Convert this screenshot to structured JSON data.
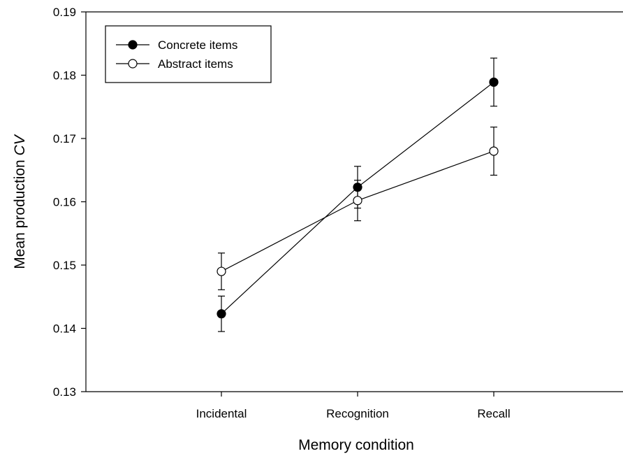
{
  "chart_data": {
    "type": "line",
    "title": "",
    "xlabel": "Memory condition",
    "ylabel_main": "Mean production ",
    "ylabel_italic": "CV",
    "categories": [
      "Incidental",
      "Recognition",
      "Recall"
    ],
    "ylim": [
      0.13,
      0.19
    ],
    "yticks": [
      "0.13",
      "0.14",
      "0.15",
      "0.16",
      "0.17",
      "0.18",
      "0.19"
    ],
    "grid": false,
    "legend_position": "top-left",
    "series": [
      {
        "name": "Concrete items",
        "marker": "filled-circle",
        "color": "#000000",
        "values": [
          0.1423,
          0.1623,
          0.1789
        ],
        "errors": [
          0.0028,
          0.0033,
          0.0038
        ]
      },
      {
        "name": "Abstract items",
        "marker": "open-circle",
        "color": "#000000",
        "values": [
          0.149,
          0.1602,
          0.168
        ],
        "errors": [
          0.0029,
          0.0032,
          0.0038
        ]
      }
    ]
  }
}
